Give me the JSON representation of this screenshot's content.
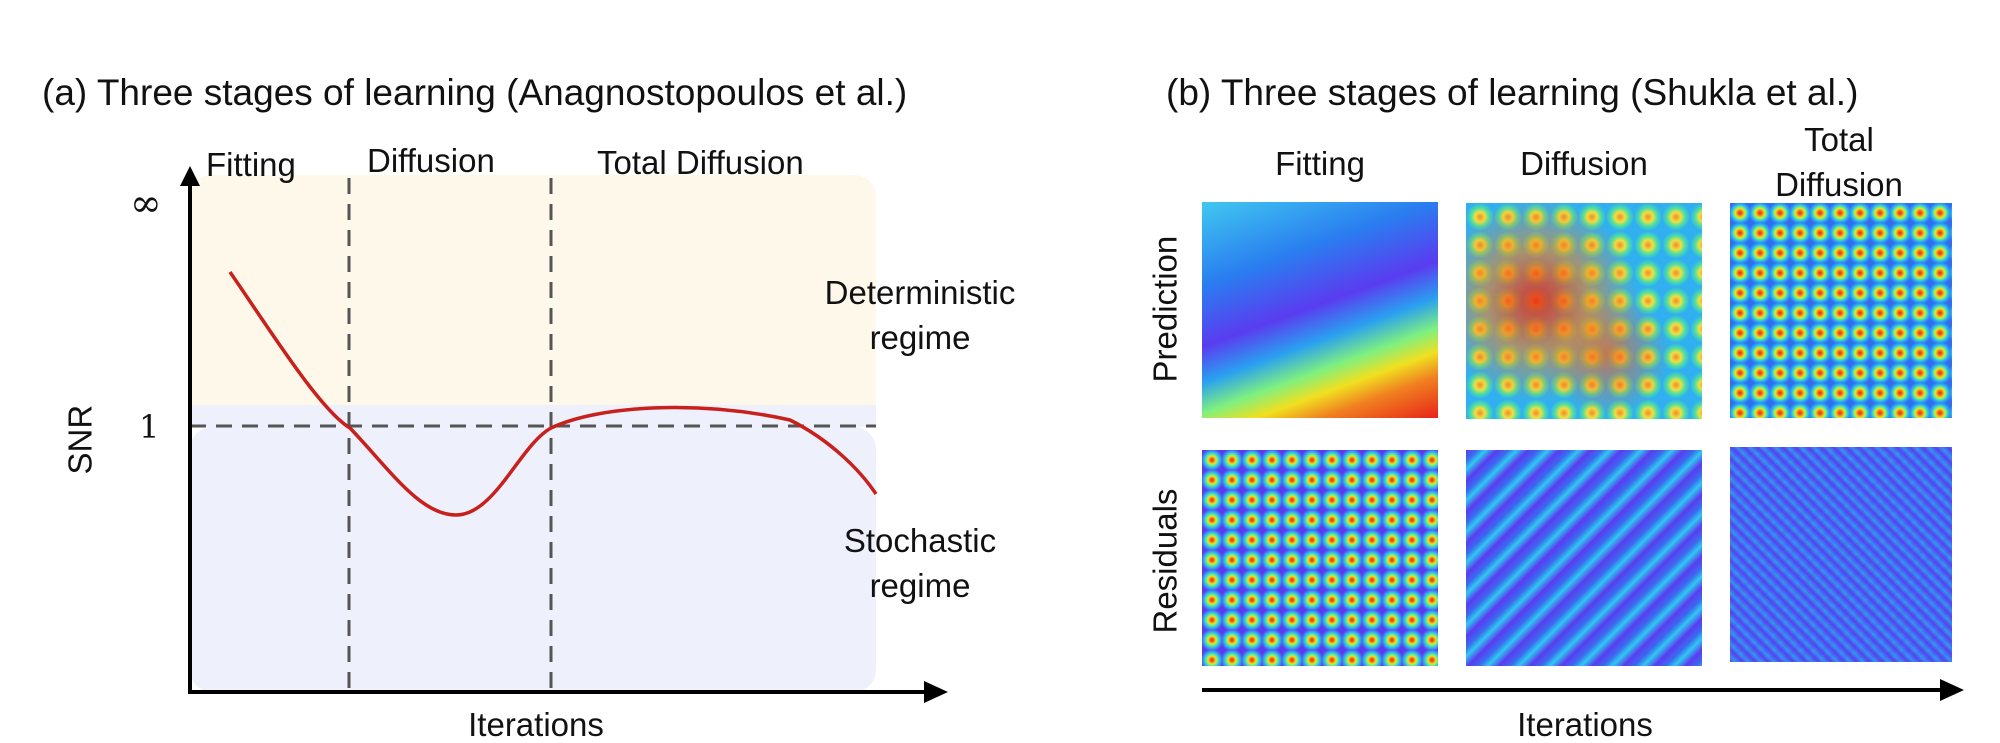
{
  "panel_a": {
    "title": "(a) Three stages of learning (Anagnostopoulos et al.)",
    "stages": [
      "Fitting",
      "Diffusion",
      "Total Diffusion"
    ],
    "y_axis_label": "SNR",
    "y_ticks": [
      "∞",
      "1"
    ],
    "x_axis_label": "Iterations",
    "regime_upper": [
      "Deterministic",
      "regime"
    ],
    "regime_lower": [
      "Stochastic",
      "regime"
    ],
    "colors": {
      "upper_region": "#fdf8ea",
      "lower_region": "#eef1fb",
      "curve": "#c8201c",
      "dashes": "#555555"
    }
  },
  "panel_b": {
    "title": "(b) Three stages of learning (Shukla et al.)",
    "columns": [
      "Fitting",
      "Diffusion",
      "Total\nDiffusion"
    ],
    "column_total_line1": "Total",
    "column_total_line2": "Diffusion",
    "rows": [
      "Prediction",
      "Residuals"
    ],
    "x_axis_label": "Iterations",
    "colormap": "jet"
  }
}
